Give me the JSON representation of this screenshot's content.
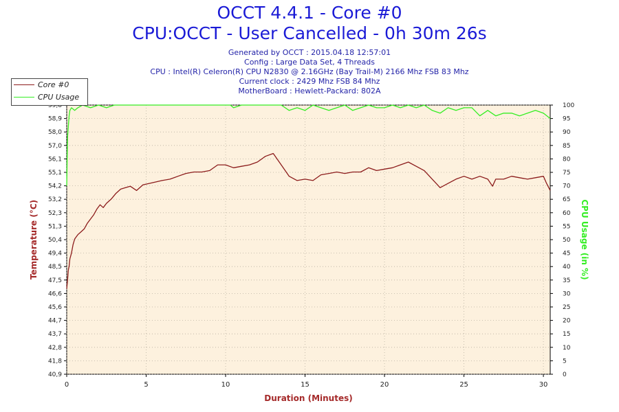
{
  "title_line1": "OCCT 4.4.1 - Core #0",
  "title_line2": "CPU:OCCT - User Cancelled - 0h 30m 26s",
  "info": {
    "generated": "Generated by OCCT : 2015.04.18 12:57:01",
    "config": "Config : Large Data Set, 4 Threads",
    "cpu": "CPU : Intel(R) Celeron(R) CPU N2830 @ 2.16GHz (Bay Trail-M) 2166 Mhz FSB 83 Mhz",
    "clock": "Current clock : 2429 Mhz FSB 84 Mhz",
    "motherboard": "MotherBoard : Hewlett-Packard: 802A"
  },
  "legend": [
    {
      "label": "Core #0",
      "color": "#8b1a1a"
    },
    {
      "label": "CPU Usage",
      "color": "#33ee22"
    }
  ],
  "chart_data": {
    "type": "line",
    "xlabel": "Duration (Minutes)",
    "ylabel_left": "Temperature (°C)",
    "ylabel_right": "CPU Usage (in %)",
    "xlim": [
      0,
      30.43
    ],
    "xticks": [
      "0",
      "5",
      "10",
      "15",
      "20",
      "25",
      "30"
    ],
    "ylim_left": [
      40.9,
      59.8
    ],
    "yticks_left": [
      "40,9",
      "41,8",
      "42,8",
      "43,7",
      "44,7",
      "45,6",
      "46,6",
      "47,5",
      "48,5",
      "49,4",
      "50,4",
      "51,3",
      "52,3",
      "53,2",
      "54,2",
      "55,1",
      "56,1",
      "57,0",
      "58,0",
      "58,9",
      "59,8"
    ],
    "ylim_right": [
      0,
      100
    ],
    "yticks_right": [
      "0",
      "5",
      "10",
      "15",
      "20",
      "25",
      "30",
      "35",
      "40",
      "45",
      "50",
      "55",
      "60",
      "65",
      "70",
      "75",
      "80",
      "85",
      "90",
      "95",
      "100"
    ],
    "series": [
      {
        "name": "Core #0",
        "color": "#8b1a1a",
        "x": [
          0,
          0.05,
          0.1,
          0.15,
          0.2,
          0.3,
          0.4,
          0.5,
          0.7,
          0.9,
          1.1,
          1.3,
          1.5,
          1.7,
          1.9,
          2.1,
          2.3,
          2.5,
          2.8,
          3.1,
          3.4,
          3.7,
          4.0,
          4.4,
          4.8,
          5.2,
          5.6,
          6.0,
          6.5,
          7.0,
          7.5,
          8.0,
          8.5,
          9.0,
          9.5,
          10.0,
          10.5,
          11.0,
          11.5,
          12.0,
          12.5,
          13.0,
          13.5,
          14.0,
          14.5,
          15.0,
          15.5,
          16.0,
          16.5,
          17.0,
          17.5,
          18.0,
          18.5,
          19.0,
          19.5,
          20.0,
          20.5,
          21.0,
          21.5,
          22.0,
          22.5,
          23.0,
          23.5,
          24.0,
          24.5,
          25.0,
          25.5,
          26.0,
          26.5,
          26.8,
          27.0,
          27.5,
          28.0,
          28.5,
          29.0,
          29.5,
          30.0,
          30.2,
          30.43
        ],
        "values": [
          46.9,
          47.5,
          48.2,
          48.5,
          49.0,
          49.4,
          50.0,
          50.4,
          50.7,
          50.9,
          51.1,
          51.5,
          51.8,
          52.1,
          52.5,
          52.8,
          52.6,
          52.9,
          53.2,
          53.6,
          53.9,
          54.0,
          54.1,
          53.8,
          54.2,
          54.3,
          54.4,
          54.5,
          54.6,
          54.8,
          55.0,
          55.1,
          55.1,
          55.2,
          55.6,
          55.6,
          55.4,
          55.5,
          55.6,
          55.8,
          56.2,
          56.4,
          55.6,
          54.8,
          54.5,
          54.6,
          54.5,
          54.9,
          55.0,
          55.1,
          55.0,
          55.1,
          55.1,
          55.4,
          55.2,
          55.3,
          55.4,
          55.6,
          55.8,
          55.5,
          55.2,
          54.6,
          54.0,
          54.3,
          54.6,
          54.8,
          54.6,
          54.8,
          54.6,
          54.1,
          54.6,
          54.6,
          54.8,
          54.7,
          54.6,
          54.7,
          54.8,
          54.3,
          53.8
        ]
      },
      {
        "name": "CPU Usage",
        "color": "#33ee22",
        "x": [
          0,
          0.05,
          0.1,
          0.15,
          0.2,
          0.3,
          0.5,
          0.7,
          1.0,
          1.5,
          2.0,
          2.5,
          3.0,
          4.0,
          5.0,
          6.0,
          7.0,
          8.0,
          9.0,
          10.0,
          10.3,
          10.5,
          11.0,
          12.0,
          13.0,
          13.5,
          14.0,
          14.5,
          15.0,
          15.5,
          16.0,
          16.5,
          17.0,
          17.5,
          18.0,
          18.5,
          19.0,
          19.5,
          20.0,
          20.5,
          21.0,
          21.5,
          22.0,
          22.5,
          23.0,
          23.5,
          24.0,
          24.5,
          25.0,
          25.5,
          26.0,
          26.5,
          27.0,
          27.5,
          28.0,
          28.5,
          29.0,
          29.5,
          30.0,
          30.43
        ],
        "values": [
          70,
          88,
          92,
          96,
          98,
          99,
          98,
          99,
          100,
          99,
          100,
          99,
          100,
          100,
          100,
          100,
          100,
          100,
          100,
          100,
          100,
          99,
          100,
          100,
          100,
          100,
          98,
          99,
          98,
          100,
          99,
          98,
          99,
          100,
          98,
          99,
          100,
          99,
          99,
          100,
          99,
          100,
          99,
          100,
          98,
          97,
          99,
          98,
          99,
          99,
          96,
          98,
          96,
          97,
          97,
          96,
          97,
          98,
          97,
          95
        ]
      }
    ]
  }
}
